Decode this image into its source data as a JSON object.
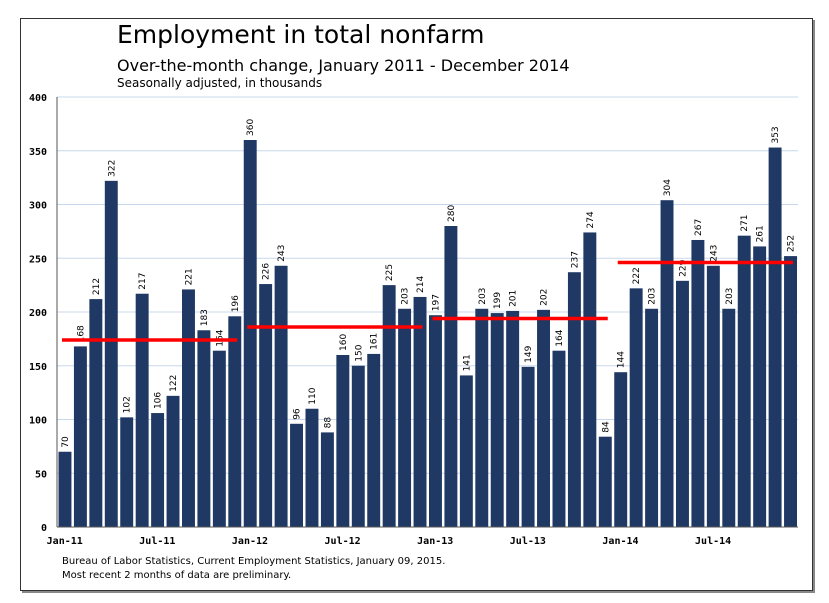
{
  "chart_data": {
    "type": "bar",
    "title": "Employment in total nonfarm",
    "subtitle": "Over-the-month change, January 2011 - December 2014",
    "subtitle2": "Seasonally adjusted, in thousands",
    "source_lines": [
      "Bureau of Labor Statistics, Current Employment Statistics, January 09, 2015.",
      "Most recent 2 months of data are preliminary."
    ],
    "ylim": [
      0,
      400
    ],
    "yticks": [
      0,
      50,
      100,
      150,
      200,
      250,
      300,
      350,
      400
    ],
    "grid": true,
    "xtick_labels": [
      "Jan-11",
      "Jul-11",
      "Jan-12",
      "Jul-12",
      "Jan-13",
      "Jul-13",
      "Jan-14",
      "Jul-14"
    ],
    "values": [
      70,
      168,
      212,
      322,
      102,
      217,
      106,
      122,
      221,
      183,
      164,
      196,
      360,
      226,
      243,
      96,
      110,
      88,
      160,
      150,
      161,
      225,
      203,
      214,
      197,
      280,
      141,
      203,
      199,
      201,
      149,
      202,
      164,
      237,
      274,
      84,
      144,
      222,
      203,
      304,
      229,
      267,
      243,
      203,
      271,
      261,
      353,
      252
    ],
    "annual_averages": [
      {
        "year": 2011,
        "value": 174
      },
      {
        "year": 2012,
        "value": 186
      },
      {
        "year": 2013,
        "value": 194
      },
      {
        "year": 2014,
        "value": 246
      }
    ],
    "colors": {
      "bar": "#1f3864",
      "average_line": "#ff0000",
      "grid": "#c8d8ec"
    }
  }
}
